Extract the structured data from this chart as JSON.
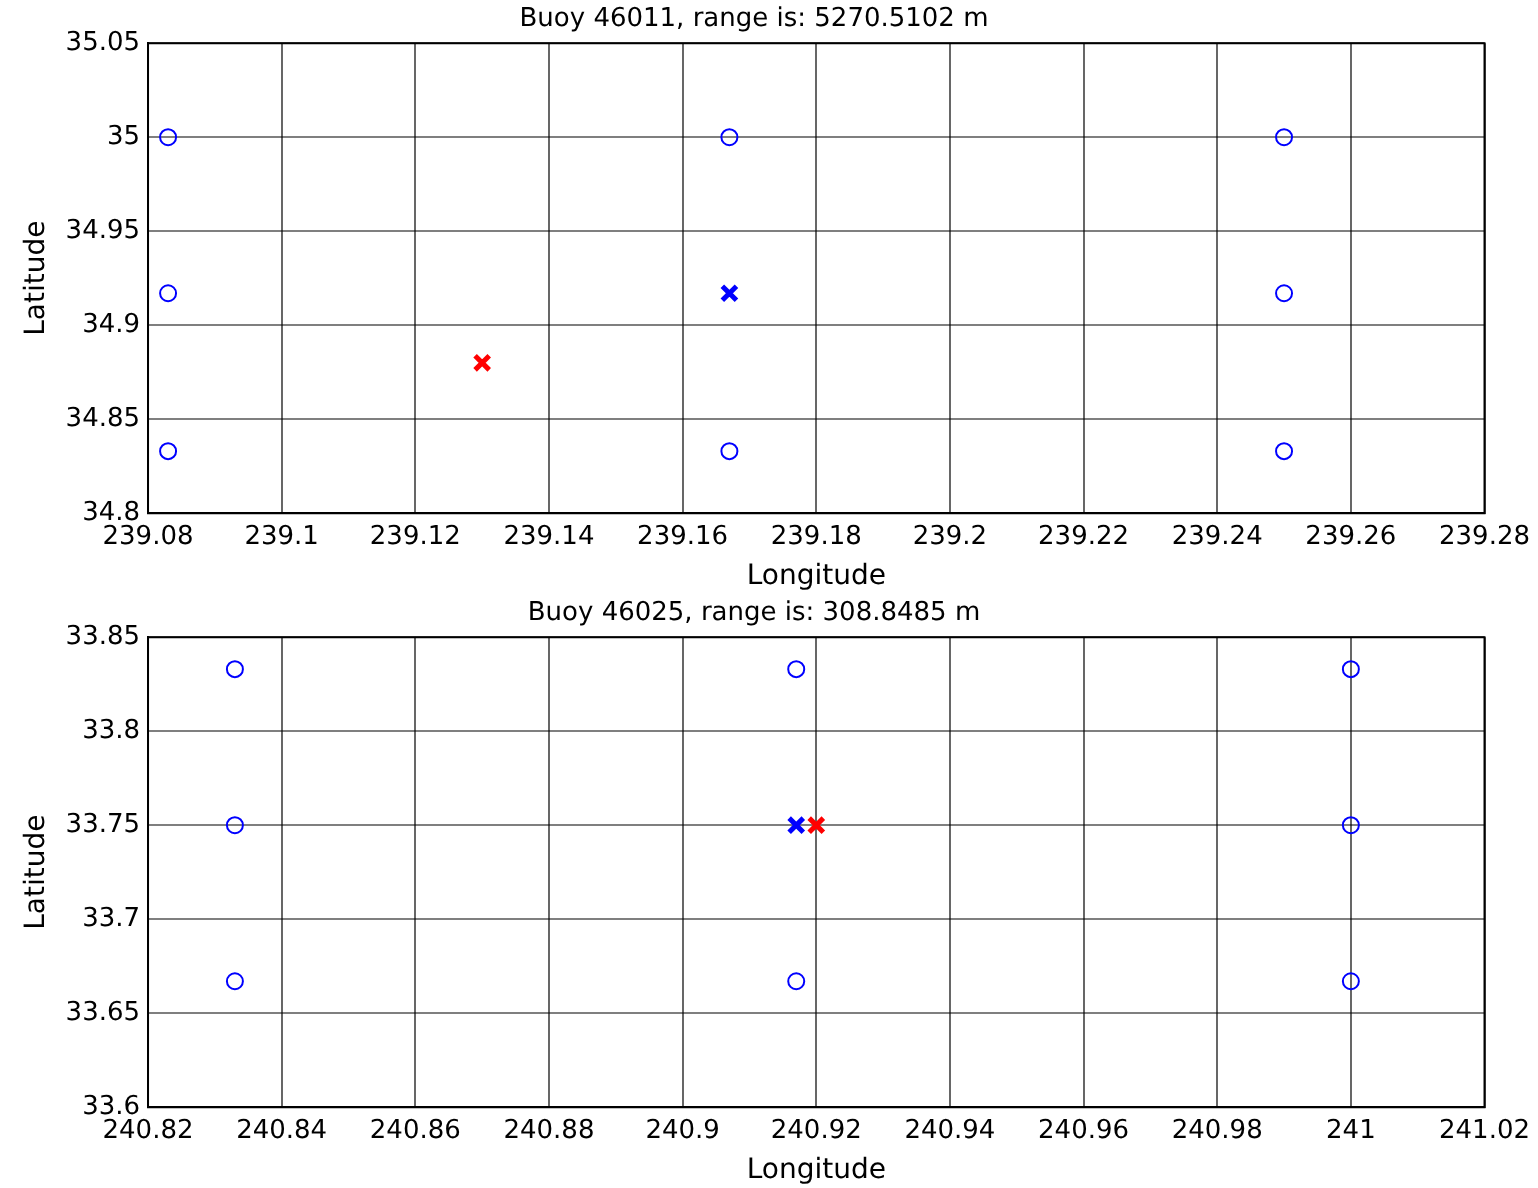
{
  "chart_data": [
    {
      "type": "scatter",
      "title": "Buoy 46011, range is: 5270.5102 m",
      "xlabel": "Longitude",
      "ylabel": "Latitude",
      "xlim": [
        239.08,
        239.28
      ],
      "xticks": [
        239.08,
        239.1,
        239.12,
        239.14,
        239.16,
        239.18,
        239.2,
        239.22,
        239.24,
        239.26,
        239.28
      ],
      "ylim": [
        34.8,
        35.05
      ],
      "yticks": [
        34.8,
        34.85,
        34.9,
        34.95,
        35,
        35.05
      ],
      "grid": true,
      "legend": false,
      "series": [
        {
          "color": "#0000ff",
          "marker": "circle",
          "x": [
            239.083,
            239.083,
            239.083,
            239.167,
            239.167,
            239.25,
            239.25,
            239.25
          ],
          "values": [
            35.0,
            34.917,
            34.833,
            35.0,
            34.833,
            35.0,
            34.917,
            34.833
          ]
        },
        {
          "color": "#0000ff",
          "marker": "cross",
          "x": [
            239.167
          ],
          "values": [
            34.917
          ]
        },
        {
          "color": "#ff0000",
          "marker": "cross",
          "x": [
            239.13
          ],
          "values": [
            34.88
          ]
        }
      ]
    },
    {
      "type": "scatter",
      "title": "Buoy 46025, range is: 308.8485 m",
      "xlabel": "Longitude",
      "ylabel": "Latitude",
      "xlim": [
        240.82,
        241.02
      ],
      "xticks": [
        240.82,
        240.84,
        240.86,
        240.88,
        240.9,
        240.92,
        240.94,
        240.96,
        240.98,
        241,
        241.02
      ],
      "ylim": [
        33.6,
        33.85
      ],
      "yticks": [
        33.6,
        33.65,
        33.7,
        33.75,
        33.8,
        33.85
      ],
      "grid": true,
      "legend": false,
      "series": [
        {
          "color": "#0000ff",
          "marker": "circle",
          "x": [
            240.833,
            240.833,
            240.833,
            240.917,
            240.917,
            241.0,
            241.0,
            241.0
          ],
          "values": [
            33.833,
            33.75,
            33.667,
            33.833,
            33.667,
            33.833,
            33.75,
            33.667
          ]
        },
        {
          "color": "#0000ff",
          "marker": "cross",
          "x": [
            240.917
          ],
          "values": [
            33.75
          ]
        },
        {
          "color": "#ff0000",
          "marker": "cross",
          "x": [
            240.92
          ],
          "values": [
            33.75
          ]
        }
      ]
    }
  ]
}
